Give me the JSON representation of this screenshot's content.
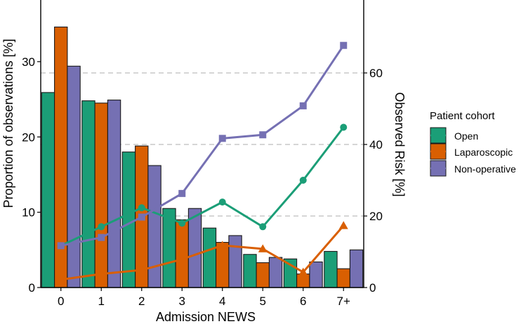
{
  "chart_data": {
    "type": "bar+line",
    "title": "",
    "xlabel": "Admission NEWS",
    "ylabel_left": "Proportion of observations [%]",
    "ylabel_right": "Observed Risk [%]",
    "categories": [
      "0",
      "1",
      "2",
      "3",
      "4",
      "5",
      "6",
      "7+"
    ],
    "ylim_left": [
      0,
      38
    ],
    "yticks_left": [
      0,
      10,
      20,
      30
    ],
    "ylim_right": [
      0,
      80
    ],
    "yticks_right": [
      0,
      20,
      40,
      60
    ],
    "grid": "horizontal dashed at right-axis ticks",
    "bars": [
      {
        "name": "Open",
        "color": "#1b9e77",
        "values": [
          25.9,
          24.8,
          18.0,
          10.5,
          7.9,
          4.4,
          3.8,
          4.8
        ]
      },
      {
        "name": "Laparoscopic",
        "color": "#d95f02",
        "values": [
          34.6,
          24.5,
          18.8,
          9.0,
          6.0,
          3.3,
          1.8,
          2.5
        ]
      },
      {
        "name": "Non-operative",
        "color": "#7570b3",
        "values": [
          29.4,
          24.9,
          16.2,
          10.5,
          6.9,
          4.0,
          3.4,
          5.0
        ]
      }
    ],
    "lines": [
      {
        "name": "Open",
        "color": "#1b9e77",
        "marker": "circle",
        "values": [
          11.7,
          17.0,
          22.3,
          18.0,
          23.9,
          17.0,
          30.0,
          44.8
        ]
      },
      {
        "name": "Laparoscopic",
        "color": "#d95f02",
        "marker": "triangle",
        "values": [
          2.2,
          3.8,
          4.9,
          7.9,
          11.8,
          10.8,
          4.3,
          17.3
        ]
      },
      {
        "name": "Non-operative",
        "color": "#7570b3",
        "marker": "square",
        "values": [
          11.7,
          14.0,
          19.7,
          26.3,
          41.7,
          42.7,
          50.8,
          67.7
        ]
      }
    ],
    "legend": {
      "title": "Patient cohort",
      "position": "right",
      "entries": [
        {
          "label": "Open",
          "color": "#1b9e77",
          "marker": "circle"
        },
        {
          "label": "Laparoscopic",
          "color": "#d95f02",
          "marker": "triangle"
        },
        {
          "label": "Non-operative",
          "color": "#7570b3",
          "marker": "square"
        }
      ]
    }
  }
}
